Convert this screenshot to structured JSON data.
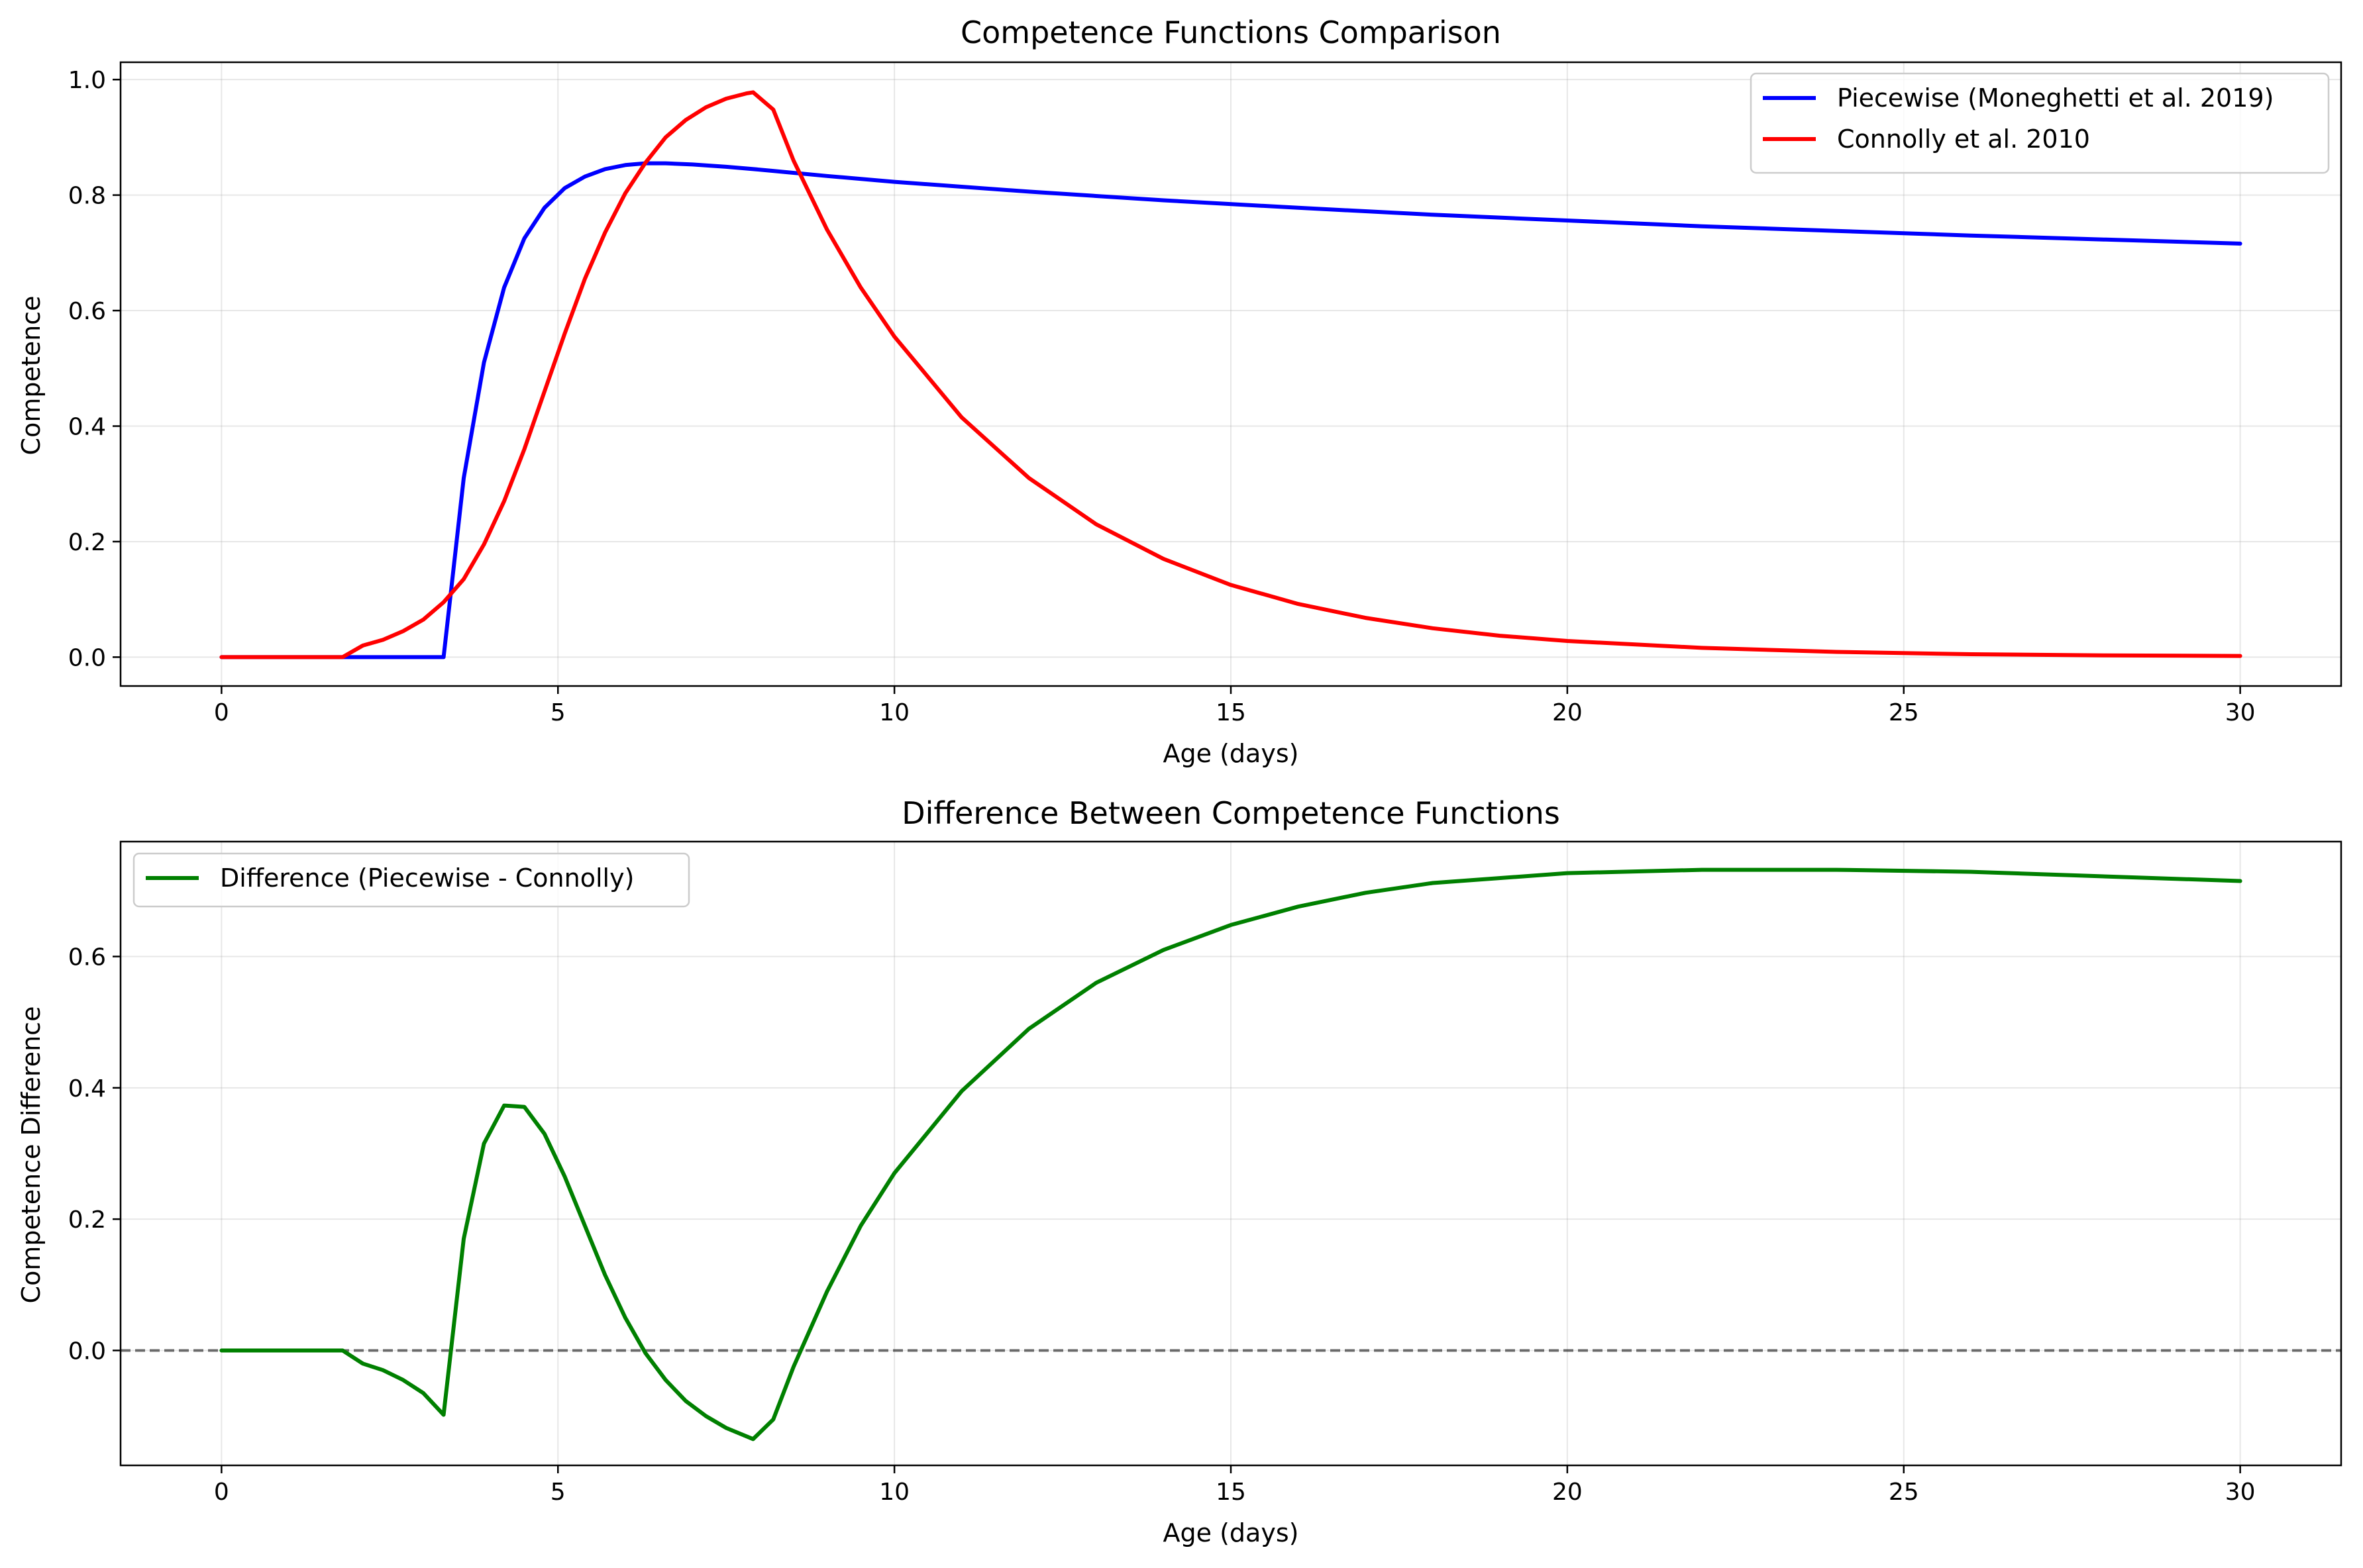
{
  "chart_data": [
    {
      "type": "line",
      "title": "Competence Functions Comparison",
      "xlabel": "Age (days)",
      "ylabel": "Competence",
      "xlim": [
        -1.5,
        31.5
      ],
      "ylim": [
        -0.05,
        1.03
      ],
      "xticks": [
        0,
        5,
        10,
        15,
        20,
        25,
        30
      ],
      "yticks": [
        0.0,
        0.2,
        0.4,
        0.6,
        0.8,
        1.0
      ],
      "xtick_labels": [
        "0",
        "5",
        "10",
        "15",
        "20",
        "25",
        "30"
      ],
      "ytick_labels": [
        "0.0",
        "0.2",
        "0.4",
        "0.6",
        "0.8",
        "1.0"
      ],
      "grid": true,
      "legend_position": "top-right",
      "series": [
        {
          "name": "Piecewise (Moneghetti et al. 2019)",
          "color": "#0000ff",
          "x": [
            0,
            0.5,
            1,
            1.5,
            2,
            2.5,
            3,
            3.3,
            3.6,
            3.9,
            4.2,
            4.5,
            4.8,
            5.1,
            5.4,
            5.7,
            6.0,
            6.3,
            6.6,
            7,
            7.5,
            8,
            9,
            10,
            12,
            14,
            16,
            18,
            20,
            22,
            24,
            26,
            28,
            30
          ],
          "y": [
            0,
            0,
            0,
            0,
            0,
            0,
            0,
            0,
            0.31,
            0.51,
            0.64,
            0.725,
            0.778,
            0.812,
            0.832,
            0.845,
            0.852,
            0.855,
            0.855,
            0.853,
            0.849,
            0.844,
            0.833,
            0.823,
            0.806,
            0.791,
            0.778,
            0.766,
            0.756,
            0.746,
            0.738,
            0.73,
            0.723,
            0.716
          ]
        },
        {
          "name": "Connolly et al. 2010",
          "color": "#ff0000",
          "x": [
            0,
            0.5,
            1,
            1.5,
            1.8,
            2.1,
            2.4,
            2.7,
            3.0,
            3.3,
            3.6,
            3.9,
            4.2,
            4.5,
            4.8,
            5.1,
            5.4,
            5.7,
            6.0,
            6.3,
            6.6,
            6.9,
            7.2,
            7.5,
            7.8,
            7.9,
            8.2,
            8.5,
            9,
            9.5,
            10,
            11,
            12,
            13,
            14,
            15,
            16,
            17,
            18,
            19,
            20,
            22,
            24,
            26,
            28,
            30
          ],
          "y": [
            0,
            0,
            0,
            0,
            0,
            0.02,
            0.03,
            0.045,
            0.065,
            0.095,
            0.135,
            0.195,
            0.27,
            0.36,
            0.46,
            0.56,
            0.655,
            0.735,
            0.803,
            0.856,
            0.9,
            0.93,
            0.952,
            0.967,
            0.976,
            0.978,
            0.948,
            0.86,
            0.74,
            0.64,
            0.555,
            0.415,
            0.31,
            0.23,
            0.17,
            0.125,
            0.092,
            0.068,
            0.05,
            0.037,
            0.028,
            0.016,
            0.009,
            0.005,
            0.003,
            0.002
          ]
        }
      ]
    },
    {
      "type": "line",
      "title": "Difference Between Competence Functions",
      "xlabel": "Age (days)",
      "ylabel": "Competence Difference",
      "xlim": [
        -1.5,
        31.5
      ],
      "ylim": [
        -0.175,
        0.775
      ],
      "xticks": [
        0,
        5,
        10,
        15,
        20,
        25,
        30
      ],
      "yticks": [
        0.0,
        0.2,
        0.4,
        0.6
      ],
      "xtick_labels": [
        "0",
        "5",
        "10",
        "15",
        "20",
        "25",
        "30"
      ],
      "ytick_labels": [
        "0.0",
        "0.2",
        "0.4",
        "0.6"
      ],
      "grid": true,
      "legend_position": "top-left",
      "reference_line": {
        "y": 0,
        "style": "dashed",
        "color": "#000000"
      },
      "series": [
        {
          "name": "Difference (Piecewise - Connolly)",
          "color": "#008000",
          "x": [
            0,
            0.5,
            1,
            1.5,
            1.8,
            2.1,
            2.4,
            2.7,
            3.0,
            3.3,
            3.6,
            3.9,
            4.2,
            4.5,
            4.8,
            5.1,
            5.4,
            5.7,
            6.0,
            6.3,
            6.6,
            6.9,
            7.2,
            7.5,
            7.9,
            8.2,
            8.5,
            9,
            9.5,
            10,
            11,
            12,
            13,
            14,
            15,
            16,
            17,
            18,
            20,
            22,
            24,
            26,
            28,
            30
          ],
          "y": [
            0,
            0,
            0,
            0,
            0,
            -0.02,
            -0.03,
            -0.045,
            -0.065,
            -0.098,
            0.17,
            0.315,
            0.373,
            0.371,
            0.33,
            0.265,
            0.19,
            0.115,
            0.05,
            -0.004,
            -0.045,
            -0.077,
            -0.1,
            -0.118,
            -0.135,
            -0.105,
            -0.025,
            0.09,
            0.19,
            0.27,
            0.395,
            0.49,
            0.56,
            0.61,
            0.648,
            0.676,
            0.697,
            0.712,
            0.727,
            0.732,
            0.732,
            0.729,
            0.722,
            0.715
          ]
        }
      ]
    }
  ]
}
